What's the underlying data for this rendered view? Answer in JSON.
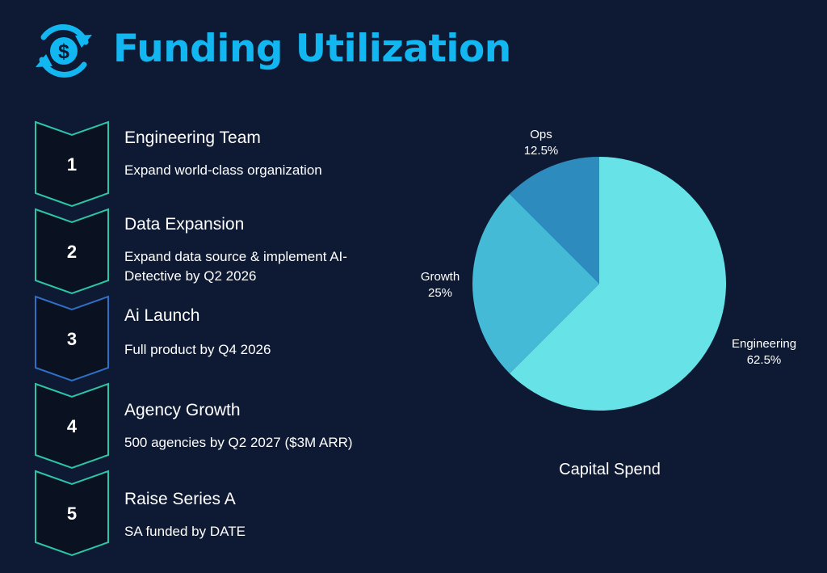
{
  "header": {
    "title": "Funding Utilization",
    "logo_icon": "dollar-refresh-icon",
    "accent": "#12b7f2"
  },
  "steps": [
    {
      "number": "1",
      "title": "Engineering Team",
      "lines": [
        "Expand world-class organization"
      ],
      "border": "#2ec4a6"
    },
    {
      "number": "2",
      "title": "Data Expansion",
      "lines": [
        "Expand data source & implement AI-",
        "Detective by Q2 2026"
      ],
      "border": "#2ec4a6"
    },
    {
      "number": "3",
      "title": "Ai Launch",
      "lines": [
        "Full product by Q4 2026"
      ],
      "border": "#2f6fc4"
    },
    {
      "number": "4",
      "title": "Agency Growth",
      "lines": [
        "500 agencies by Q2 2027 ($3M ARR)"
      ],
      "border": "#2ec4a6"
    },
    {
      "number": "5",
      "title": "Raise Series A",
      "lines": [
        "SA funded by DATE"
      ],
      "border": "#2ec4a6"
    }
  ],
  "chart_data": {
    "type": "pie",
    "title": "Capital Spend",
    "slices": [
      {
        "label": "Engineering",
        "value": 62.5,
        "display": "62.5%",
        "color": "#67e3e8"
      },
      {
        "label": "Growth",
        "value": 25,
        "display": "25%",
        "color": "#45bad6"
      },
      {
        "label": "Ops",
        "value": 12.5,
        "display": "12.5%",
        "color": "#2e8bbd"
      }
    ],
    "start": "12 o'clock, clockwise",
    "legend": "none"
  }
}
